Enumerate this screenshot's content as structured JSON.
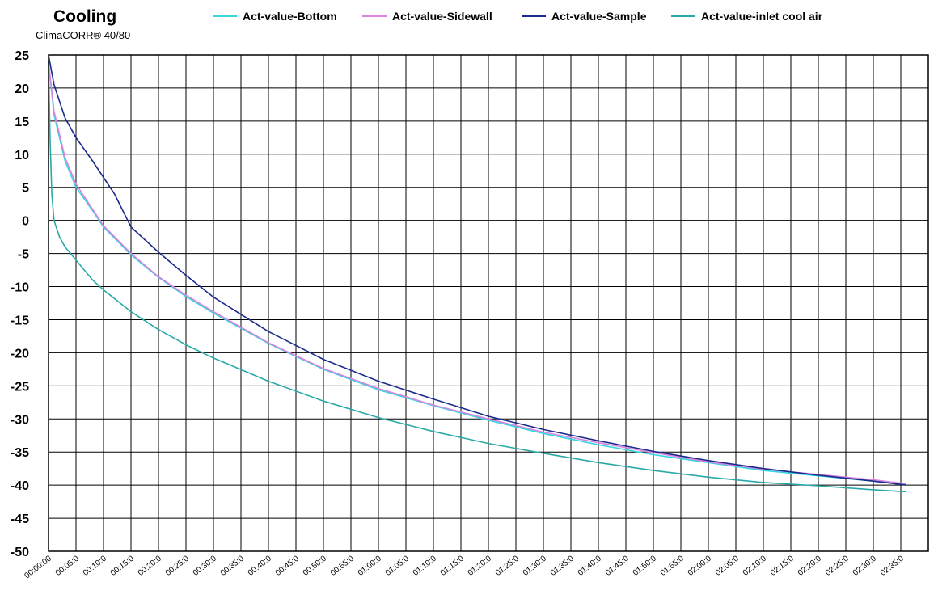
{
  "chart_data": {
    "type": "line",
    "title": "Cooling",
    "subtitle": "ClimaCORR® 40/80",
    "xlabel": "",
    "ylabel": "",
    "ylim": [
      -50,
      25
    ],
    "y_ticks": [
      25,
      20,
      15,
      10,
      5,
      0,
      -5,
      -10,
      -15,
      -20,
      -25,
      -30,
      -35,
      -40,
      -45,
      -50
    ],
    "x_ticks": [
      "00:00:00",
      "00:05:0",
      "00:10:0",
      "00:15:0",
      "00:20:0",
      "00:25:0",
      "00:30:0",
      "00:35:0",
      "00:40:0",
      "00:45:0",
      "00:50:0",
      "00:55:0",
      "01:00:0",
      "01:05:0",
      "01:10:0",
      "01:15:0",
      "01:20:0",
      "01:25:0",
      "01:30:0",
      "01:35:0",
      "01:40:0",
      "01:45:0",
      "01:50:0",
      "01:55:0",
      "02:00:0",
      "02:05:0",
      "02:10:0",
      "02:15:0",
      "02:20:0",
      "02:25:0",
      "02:30:0",
      "02:35:0"
    ],
    "grid": true,
    "legend_position": "top",
    "series": [
      {
        "name": "Act-value-Bottom",
        "color": "#33d6df",
        "x": [
          0,
          1,
          3,
          5,
          8,
          10,
          15,
          20,
          25,
          30,
          40,
          50,
          60,
          70,
          80,
          90,
          100,
          110,
          120,
          130,
          140,
          150,
          156
        ],
        "y": [
          24,
          16,
          9,
          5,
          1.5,
          -1,
          -5.2,
          -8.6,
          -11.5,
          -14,
          -18.6,
          -22.5,
          -25.6,
          -28,
          -30.2,
          -32.2,
          -33.9,
          -35.4,
          -36.6,
          -37.8,
          -38.6,
          -39.4,
          -39.9
        ]
      },
      {
        "name": "Act-value-Sidewall",
        "color": "#d884e0",
        "x": [
          0,
          1,
          3,
          5,
          8,
          10,
          15,
          20,
          25,
          30,
          40,
          50,
          60,
          70,
          80,
          90,
          100,
          110,
          120,
          130,
          140,
          150,
          156
        ],
        "y": [
          24,
          16.5,
          9.5,
          5.5,
          1.7,
          -0.8,
          -5,
          -8.5,
          -11.3,
          -13.8,
          -18.5,
          -22.4,
          -25.4,
          -27.9,
          -30,
          -32,
          -33.6,
          -35.1,
          -36.5,
          -37.6,
          -38.4,
          -39.2,
          -39.8
        ]
      },
      {
        "name": "Act-value-Sample",
        "color": "#1c2a8c",
        "x": [
          0,
          1,
          3,
          5,
          8,
          10,
          12,
          15,
          20,
          25,
          30,
          40,
          50,
          60,
          70,
          80,
          90,
          100,
          110,
          120,
          130,
          140,
          150,
          156
        ],
        "y": [
          25,
          20.5,
          15.5,
          12.5,
          9,
          6.5,
          4,
          -1,
          -4.8,
          -8.3,
          -11.6,
          -16.8,
          -21,
          -24.3,
          -27,
          -29.6,
          -31.6,
          -33.3,
          -34.9,
          -36.3,
          -37.5,
          -38.5,
          -39.4,
          -40
        ]
      },
      {
        "name": "Act-value-inlet cool air",
        "color": "#2aa9a9",
        "x": [
          0,
          0.3,
          0.6,
          1,
          2,
          3,
          5,
          8,
          10,
          15,
          20,
          25,
          30,
          40,
          50,
          60,
          70,
          80,
          90,
          100,
          110,
          120,
          130,
          140,
          150,
          156
        ],
        "y": [
          24,
          12,
          4,
          0,
          -2.5,
          -4,
          -6,
          -9,
          -10.5,
          -13.8,
          -16.5,
          -18.8,
          -20.8,
          -24.3,
          -27.3,
          -29.8,
          -31.9,
          -33.7,
          -35.2,
          -36.6,
          -37.8,
          -38.8,
          -39.6,
          -40.1,
          -40.7,
          -41
        ]
      }
    ]
  }
}
